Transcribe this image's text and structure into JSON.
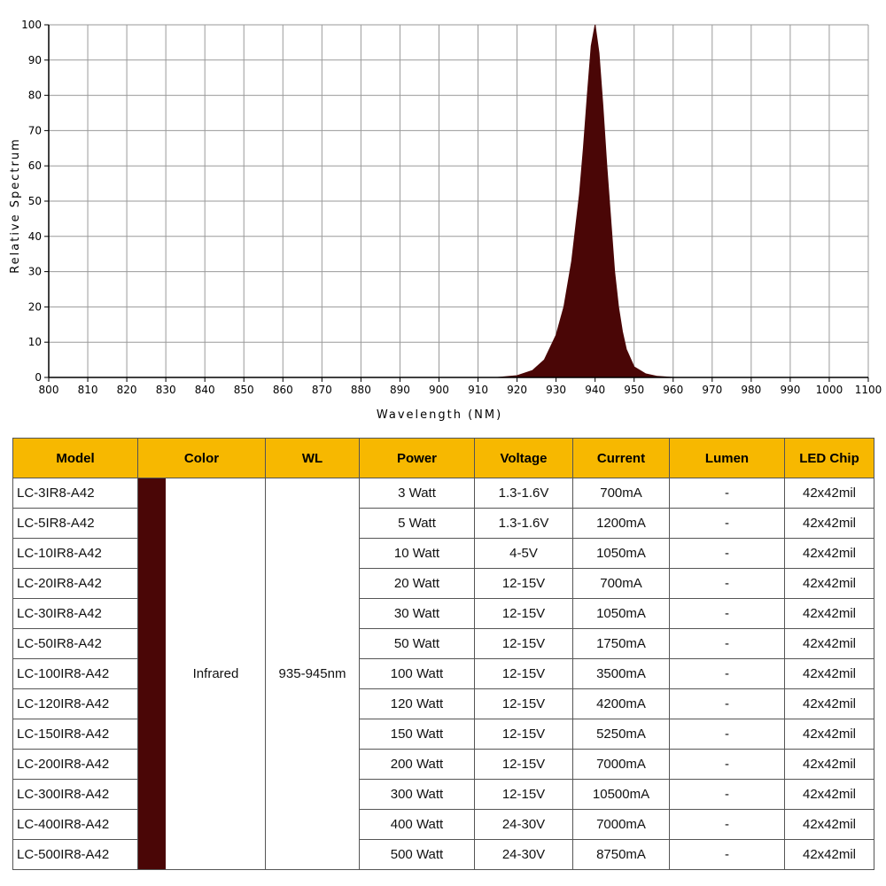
{
  "chart_data": {
    "type": "area",
    "xlabel": "Wavelength (NM)",
    "ylabel": "Relative Spectrum",
    "xlim": [
      800,
      1100
    ],
    "ylim": [
      0,
      100
    ],
    "x_ticks": [
      800,
      810,
      820,
      830,
      840,
      850,
      860,
      870,
      880,
      890,
      900,
      910,
      920,
      930,
      940,
      950,
      960,
      970,
      980,
      990,
      1000,
      1100
    ],
    "y_ticks": [
      0,
      10,
      20,
      30,
      40,
      50,
      60,
      70,
      80,
      90,
      100
    ],
    "grid": true,
    "fill_color": "#4a0606",
    "series": [
      {
        "x": [
          915,
          920,
          924,
          927,
          930,
          932,
          934,
          936,
          937,
          938,
          939,
          940,
          941,
          942,
          943,
          944,
          945,
          946,
          947,
          948,
          950,
          953,
          956,
          960
        ],
        "y": [
          0,
          0.5,
          2,
          5,
          12,
          20,
          33,
          52,
          65,
          80,
          94,
          100,
          92,
          77,
          60,
          45,
          30,
          20,
          13,
          8,
          3,
          1,
          0.3,
          0
        ]
      }
    ]
  },
  "table": {
    "header_color": "#f7b800",
    "headers": [
      "Model",
      "Color",
      "WL",
      "Power",
      "Voltage",
      "Current",
      "Lumen",
      "LED Chip"
    ],
    "color_name": "Infrared",
    "swatch_color": "#4a0606",
    "wavelength": "935-945nm",
    "rows": [
      {
        "model": "LC-3IR8-A42",
        "power": "3 Watt",
        "voltage": "1.3-1.6V",
        "current": "700mA",
        "lumen": "-",
        "chip": "42x42mil"
      },
      {
        "model": "LC-5IR8-A42",
        "power": "5 Watt",
        "voltage": "1.3-1.6V",
        "current": "1200mA",
        "lumen": "-",
        "chip": "42x42mil"
      },
      {
        "model": "LC-10IR8-A42",
        "power": "10 Watt",
        "voltage": "4-5V",
        "current": "1050mA",
        "lumen": "-",
        "chip": "42x42mil"
      },
      {
        "model": "LC-20IR8-A42",
        "power": "20 Watt",
        "voltage": "12-15V",
        "current": "700mA",
        "lumen": "-",
        "chip": "42x42mil"
      },
      {
        "model": "LC-30IR8-A42",
        "power": "30 Watt",
        "voltage": "12-15V",
        "current": "1050mA",
        "lumen": "-",
        "chip": "42x42mil"
      },
      {
        "model": "LC-50IR8-A42",
        "power": "50 Watt",
        "voltage": "12-15V",
        "current": "1750mA",
        "lumen": "-",
        "chip": "42x42mil"
      },
      {
        "model": "LC-100IR8-A42",
        "power": "100 Watt",
        "voltage": "12-15V",
        "current": "3500mA",
        "lumen": "-",
        "chip": "42x42mil"
      },
      {
        "model": "LC-120IR8-A42",
        "power": "120 Watt",
        "voltage": "12-15V",
        "current": "4200mA",
        "lumen": "-",
        "chip": "42x42mil"
      },
      {
        "model": "LC-150IR8-A42",
        "power": "150 Watt",
        "voltage": "12-15V",
        "current": "5250mA",
        "lumen": "-",
        "chip": "42x42mil"
      },
      {
        "model": "LC-200IR8-A42",
        "power": "200 Watt",
        "voltage": "12-15V",
        "current": "7000mA",
        "lumen": "-",
        "chip": "42x42mil"
      },
      {
        "model": "LC-300IR8-A42",
        "power": "300 Watt",
        "voltage": "12-15V",
        "current": "10500mA",
        "lumen": "-",
        "chip": "42x42mil"
      },
      {
        "model": "LC-400IR8-A42",
        "power": "400 Watt",
        "voltage": "24-30V",
        "current": "7000mA",
        "lumen": "-",
        "chip": "42x42mil"
      },
      {
        "model": "LC-500IR8-A42",
        "power": "500 Watt",
        "voltage": "24-30V",
        "current": "8750mA",
        "lumen": "-",
        "chip": "42x42mil"
      }
    ]
  }
}
